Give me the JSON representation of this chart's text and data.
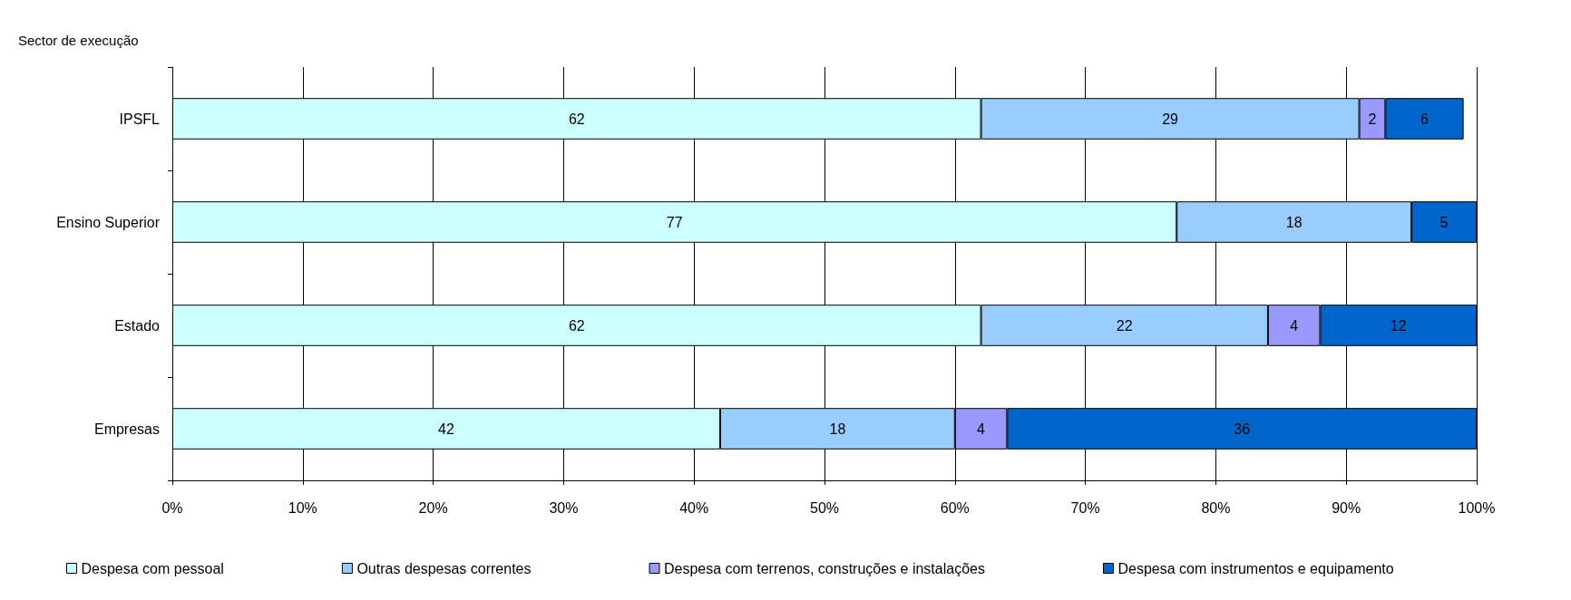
{
  "chart_data": {
    "type": "bar",
    "orientation": "horizontal",
    "stacked": true,
    "ylabel": "Sector de execução",
    "categories": [
      "IPSFL",
      "Ensino Superior",
      "Estado",
      "Empresas"
    ],
    "series": [
      {
        "name": "Despesa com pessoal",
        "color": "#ccffff",
        "values": [
          62,
          77,
          62,
          42
        ]
      },
      {
        "name": "Outras despesas correntes",
        "color": "#99ccff",
        "values": [
          29,
          18,
          22,
          18
        ]
      },
      {
        "name": "Despesa com terrenos, construções e instalações",
        "color": "#9999ff",
        "values": [
          2,
          null,
          4,
          4
        ]
      },
      {
        "name": "Despesa com instrumentos e equipamento",
        "color": "#0066cc",
        "values": [
          6,
          5,
          12,
          36
        ]
      }
    ],
    "xlim": [
      0,
      100
    ],
    "xticks": [
      {
        "value": 0,
        "label": "0%"
      },
      {
        "value": 10,
        "label": "10%"
      },
      {
        "value": 20,
        "label": "20%"
      },
      {
        "value": 30,
        "label": "30%"
      },
      {
        "value": 40,
        "label": "40%"
      },
      {
        "value": 50,
        "label": "50%"
      },
      {
        "value": 60,
        "label": "60%"
      },
      {
        "value": 70,
        "label": "70%"
      },
      {
        "value": 80,
        "label": "80%"
      },
      {
        "value": 90,
        "label": "90%"
      },
      {
        "value": 100,
        "label": "100%"
      }
    ],
    "grid": "x",
    "legend": "bottom",
    "data_labels": true
  }
}
